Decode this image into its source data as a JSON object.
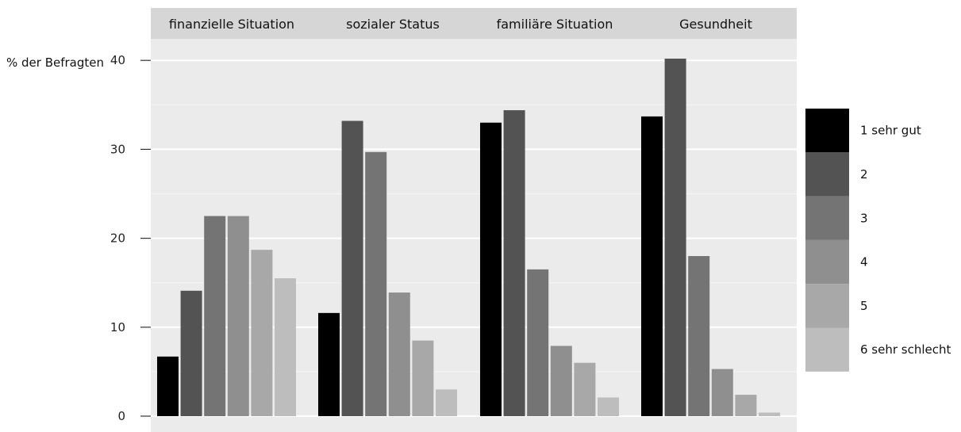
{
  "chart_data": {
    "type": "bar",
    "ylabel": "% der Befragten",
    "ylim": [
      0,
      44
    ],
    "yticks": [
      0,
      10,
      20,
      30,
      40
    ],
    "grid": true,
    "legend_position": "right",
    "categories": [
      "1 sehr gut",
      "2",
      "3",
      "4",
      "5",
      "6 sehr schlecht"
    ],
    "colors": [
      "#000000",
      "#535353",
      "#747474",
      "#8f8f8f",
      "#a8a8a8",
      "#bdbdbd"
    ],
    "panels": [
      {
        "name": "finanzielle Situation",
        "values": [
          6.7,
          14.1,
          22.5,
          22.5,
          18.7,
          15.5
        ]
      },
      {
        "name": "sozialer Status",
        "values": [
          11.6,
          33.2,
          29.7,
          13.9,
          8.5,
          3.0
        ]
      },
      {
        "name": "familiäre Situation",
        "values": [
          33.0,
          34.4,
          16.5,
          7.9,
          6.0,
          2.1
        ]
      },
      {
        "name": "Gesundheit",
        "values": [
          33.7,
          40.2,
          18.0,
          5.3,
          2.4,
          0.4
        ]
      }
    ]
  }
}
